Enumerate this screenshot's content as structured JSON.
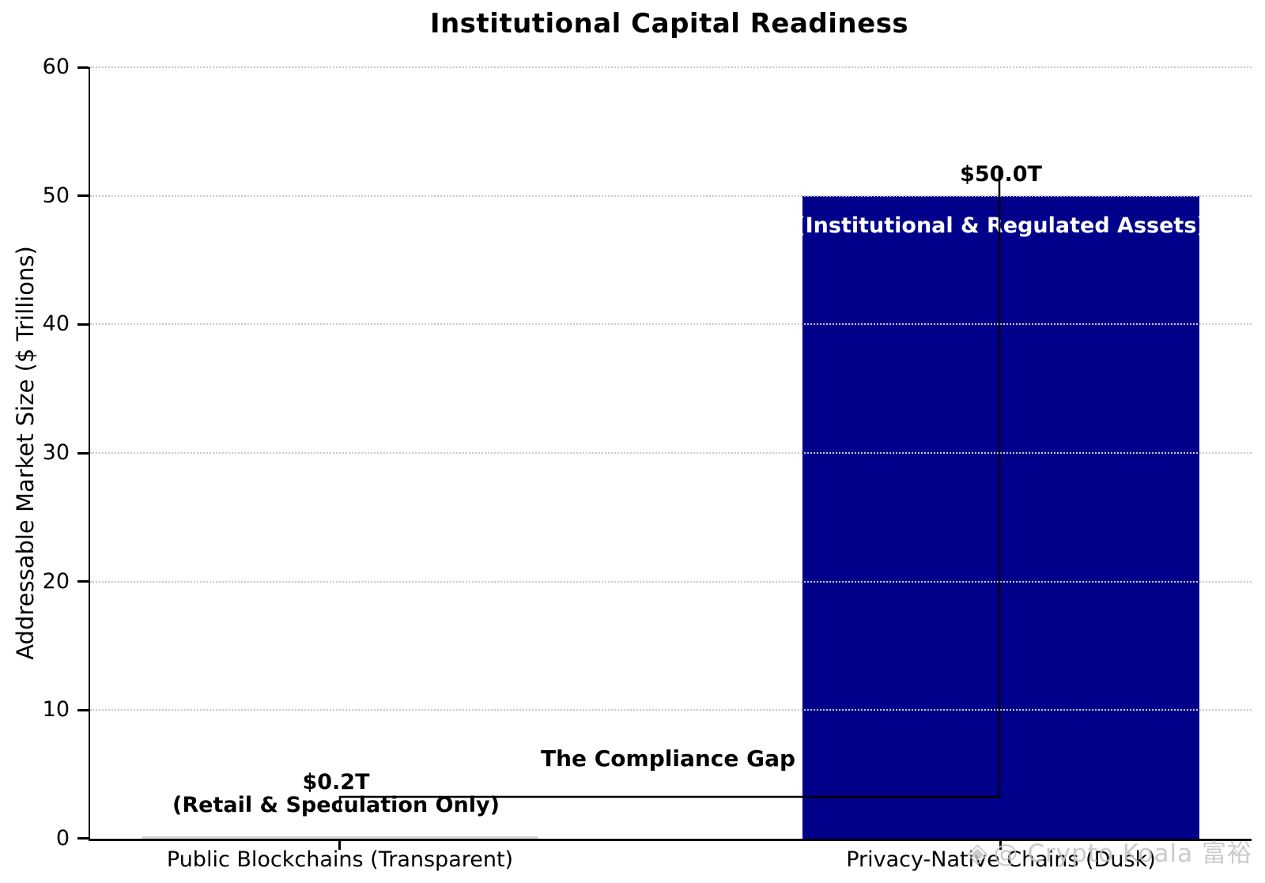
{
  "chart_data": {
    "type": "bar",
    "title": "Institutional Capital Readiness",
    "ylabel": "Addressable Market Size ($ Trillions)",
    "xlabel": "",
    "ylim": [
      0,
      60
    ],
    "yticks": [
      0,
      10,
      20,
      30,
      40,
      50,
      60
    ],
    "grid": "horizontal-dotted",
    "legend": false,
    "categories": [
      "Public Blockchains (Transparent)",
      "Privacy-Native Chains (Dusk)"
    ],
    "values": [
      0.2,
      50.0
    ],
    "bar_value_labels": [
      "$0.2T",
      "$50.0T"
    ],
    "bar_sublabels": [
      "(Retail & Speculation Only)",
      "(Institutional & Regulated Assets)"
    ],
    "bar_colors": [
      "#d3d3d3",
      "#00008b"
    ],
    "grid_color": "#c9c9c9",
    "axis_color": "#000000",
    "annotation": {
      "label": "The Compliance Gap",
      "connector_style": "right-angle elbow from small bar top to tall bar value label",
      "color": "#000000"
    }
  },
  "watermark": {
    "glyph": "◈",
    "text": "@ Crypto Koala 富裕",
    "color": "#c2c2c2"
  }
}
